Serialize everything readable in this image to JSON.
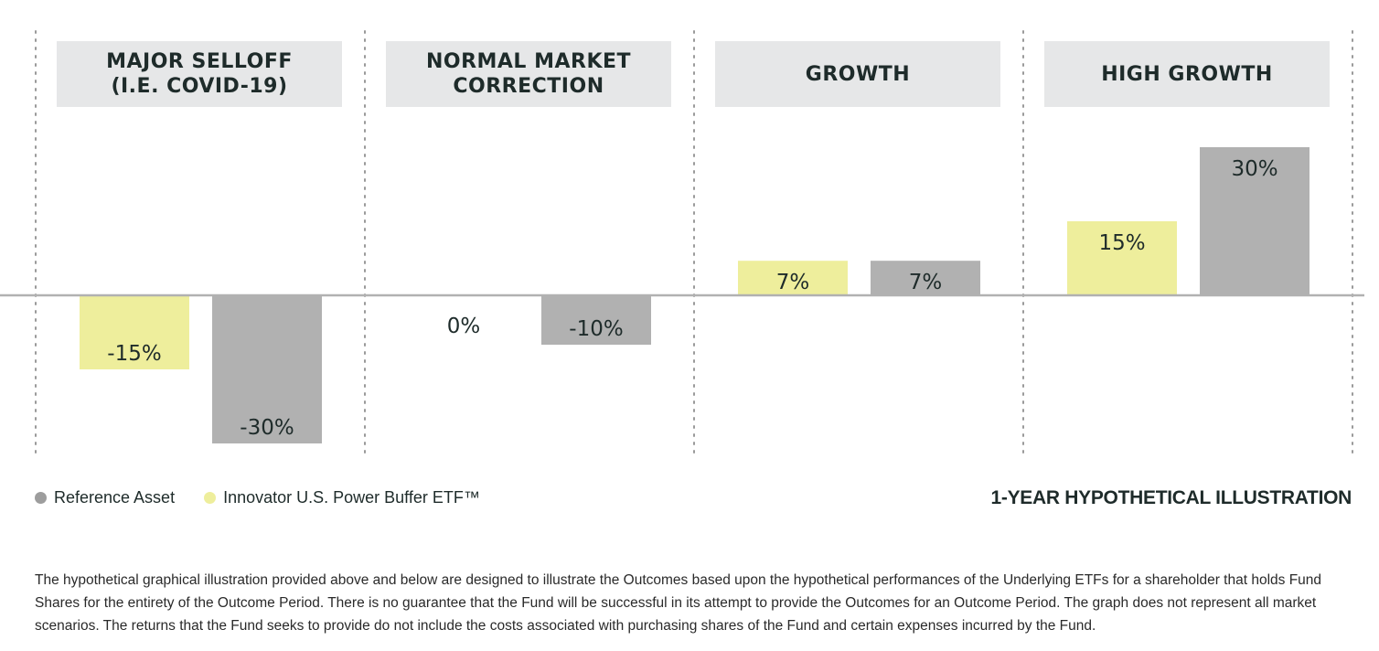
{
  "chart_data": {
    "type": "bar",
    "categories": [
      "MAJOR SELLOFF\n(I.E. COVID-19)",
      "NORMAL MARKET\nCORRECTION",
      "GROWTH",
      "HIGH GROWTH"
    ],
    "series": [
      {
        "name": "Innovator U.S. Power Buffer ETF™",
        "values": [
          -15,
          0,
          7,
          15
        ],
        "labels": [
          "-15%",
          "0%",
          "7%",
          "15%"
        ],
        "color": "#eeee9c"
      },
      {
        "name": "Reference Asset",
        "values": [
          -30,
          -10,
          7,
          30
        ],
        "labels": [
          "-30%",
          "-10%",
          "7%",
          "30%"
        ],
        "color": "#b1b1b1"
      }
    ],
    "ylim": [
      -32,
      32
    ],
    "grid": false,
    "legend_position": "bottom-left",
    "baseline_color": "#b1b1b1",
    "divider_color": "#9a9a9a"
  },
  "legend": [
    {
      "label": "Reference Asset",
      "color": "#9d9d9d"
    },
    {
      "label": "Innovator U.S. Power Buffer ETF™",
      "color": "#eeee9c"
    }
  ],
  "illustration_label": "1-YEAR HYPOTHETICAL ILLUSTRATION",
  "footnote": "The hypothetical graphical illustration provided above and below are designed to illustrate the Outcomes based upon the hypothetical performances of the Underlying ETFs for a shareholder that holds Fund Shares for the entirety of the Outcome Period. There is no guarantee that the Fund will be successful in its attempt to provide the Outcomes for an Outcome Period. The graph does not represent all market scenarios. The returns that the Fund seeks to provide do not include the costs associated with purchasing shares of the Fund and certain expenses incurred by the Fund."
}
